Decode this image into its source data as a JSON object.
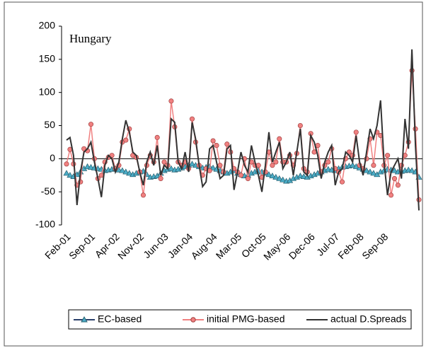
{
  "chart_data": {
    "type": "line",
    "annotation": "Hungary",
    "categories": [
      "Feb-01",
      null,
      null,
      null,
      null,
      null,
      null,
      "Sep-01",
      null,
      null,
      null,
      null,
      null,
      null,
      "Apr-02",
      null,
      null,
      null,
      null,
      null,
      null,
      "Nov-02",
      null,
      null,
      null,
      null,
      null,
      null,
      "Jun-03",
      null,
      null,
      null,
      null,
      null,
      null,
      "Jan-04",
      null,
      null,
      null,
      null,
      null,
      null,
      "Aug-04",
      null,
      null,
      null,
      null,
      null,
      null,
      "Mar-05",
      null,
      null,
      null,
      null,
      null,
      null,
      "Oct-05",
      null,
      null,
      null,
      null,
      null,
      null,
      "May-06",
      null,
      null,
      null,
      null,
      null,
      null,
      "Dec-06",
      null,
      null,
      null,
      null,
      null,
      null,
      "Jul-07",
      null,
      null,
      null,
      null,
      null,
      null,
      "Feb-08",
      null,
      null,
      null,
      null,
      null,
      null,
      "Sep-08",
      null,
      null,
      null,
      null,
      null,
      null,
      null,
      null,
      null,
      null
    ],
    "series": [
      {
        "name": "EC-based",
        "color": "#4bacc6",
        "marker": "triangle",
        "values": [
          -22,
          -25,
          -27,
          -24,
          -20,
          -15,
          -12,
          -13,
          -14,
          -15,
          -16,
          -18,
          -17,
          -16,
          -15,
          -17,
          -18,
          -20,
          -22,
          -24,
          -22,
          -20,
          -19,
          -24,
          -28,
          -27,
          -26,
          -22,
          -18,
          -16,
          -15,
          -17,
          -16,
          -14,
          -12,
          -10,
          -8,
          -10,
          -12,
          -14,
          -13,
          -12,
          -14,
          -16,
          -18,
          -20,
          -22,
          -20,
          -18,
          -22,
          -24,
          -26,
          -25,
          -22,
          -20,
          -18,
          -20,
          -22,
          -24,
          -26,
          -28,
          -30,
          -32,
          -34,
          -33,
          -30,
          -28,
          -26,
          -27,
          -28,
          -26,
          -24,
          -22,
          -20,
          -18,
          -16,
          -17,
          -18,
          -15,
          -13,
          -12,
          -11,
          -10,
          -12,
          -14,
          -16,
          -18,
          -20,
          -22,
          -24,
          -20,
          -18,
          -16,
          -17,
          -18,
          -20,
          -19,
          -18,
          -17,
          -18,
          -20,
          -28
        ]
      },
      {
        "name": "initial PMG-based",
        "color": "#f08080",
        "marker": "circle",
        "values": [
          -8,
          14,
          -8,
          -40,
          -35,
          15,
          12,
          52,
          0,
          -30,
          -25,
          -5,
          2,
          5,
          -15,
          -10,
          25,
          28,
          45,
          5,
          2,
          -20,
          -55,
          -10,
          5,
          -5,
          32,
          -30,
          -5,
          -10,
          87,
          48,
          -5,
          -10,
          -5,
          -15,
          60,
          25,
          -10,
          -25,
          -15,
          -18,
          27,
          20,
          -10,
          -20,
          22,
          10,
          -15,
          -20,
          -25,
          0,
          -30,
          -5,
          -10,
          -10,
          -28,
          -20,
          10,
          -10,
          -5,
          30,
          -5,
          -5,
          5,
          -10,
          8,
          50,
          -15,
          -20,
          38,
          10,
          20,
          -20,
          -10,
          -5,
          15,
          -15,
          -20,
          -35,
          0,
          10,
          5,
          40,
          -10,
          -15,
          0,
          30,
          -10,
          40,
          35,
          -10,
          5,
          -55,
          -30,
          -40,
          -10,
          5,
          25,
          133,
          45,
          -62
        ]
      },
      {
        "name": "actual D.Spreads",
        "color": "#333333",
        "marker": "none",
        "values": [
          28,
          32,
          5,
          -70,
          -20,
          10,
          15,
          25,
          -5,
          -30,
          -58,
          -10,
          5,
          0,
          -20,
          -5,
          30,
          58,
          40,
          10,
          5,
          -20,
          -40,
          -5,
          10,
          -10,
          20,
          -25,
          -10,
          -15,
          60,
          55,
          -5,
          -15,
          10,
          -20,
          55,
          30,
          -10,
          -42,
          -35,
          15,
          20,
          -5,
          -30,
          -25,
          15,
          20,
          -47,
          -20,
          10,
          -10,
          -20,
          20,
          -5,
          -25,
          -50,
          -10,
          40,
          -5,
          10,
          25,
          -15,
          -5,
          10,
          -25,
          10,
          45,
          -20,
          -25,
          35,
          25,
          5,
          -30,
          -5,
          10,
          20,
          -40,
          -20,
          -15,
          10,
          5,
          -5,
          35,
          -5,
          -25,
          10,
          45,
          30,
          50,
          88,
          -5,
          -55,
          -20,
          -10,
          0,
          -30,
          60,
          15,
          165,
          20,
          -78
        ]
      }
    ],
    "ylim": [
      -100,
      200
    ],
    "yticks": [
      -100,
      -50,
      0,
      50,
      100,
      150,
      200
    ],
    "legend": "bottom"
  }
}
